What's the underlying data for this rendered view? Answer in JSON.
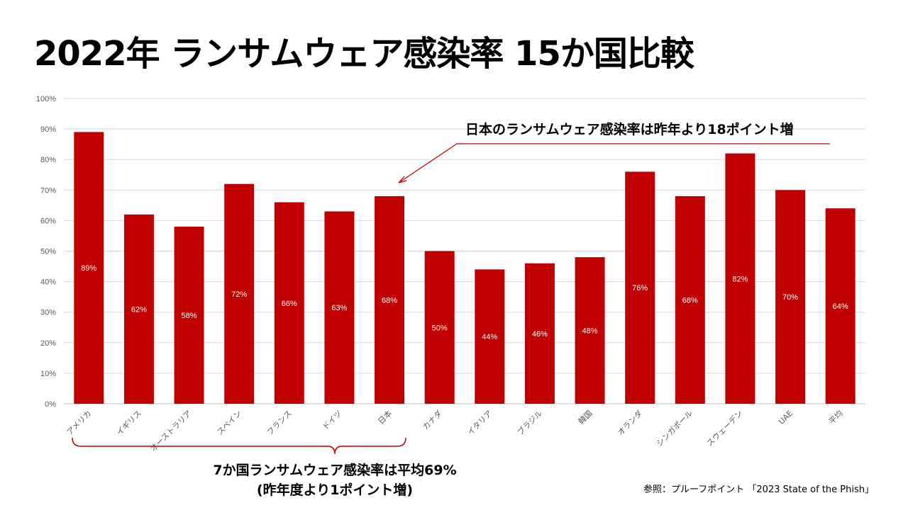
{
  "title": "2022年 ランサムウェア感染率 15か国比較",
  "callout": "日本のランサムウェア感染率は昨年より18ポイント増",
  "summary": {
    "line1": "7か国ランサムウェア感染率は平均69%",
    "line2": "(昨年度より1ポイント増)"
  },
  "source": "参照：プルーフポイント 「2023 State of the Phish」",
  "colors": {
    "bar": "#c00000",
    "grid": "#d9d9d9",
    "annotation": "#c00000"
  },
  "chart_data": {
    "type": "bar",
    "title": "2022年 ランサムウェア感染率 15か国比較",
    "categories": [
      "アメリカ",
      "イギリス",
      "オーストラリア",
      "スペイン",
      "フランス",
      "ドイツ",
      "日本",
      "カナダ",
      "イタリア",
      "ブラジル",
      "韓国",
      "オランダ",
      "シンガポール",
      "スウェーデン",
      "UAE",
      "平均"
    ],
    "values": [
      89,
      62,
      58,
      72,
      66,
      63,
      68,
      50,
      44,
      46,
      48,
      76,
      68,
      82,
      70,
      64
    ],
    "data_labels": [
      "89%",
      "62%",
      "58%",
      "72%",
      "66%",
      "63%",
      "68%",
      "50%",
      "44%",
      "46%",
      "48%",
      "76%",
      "68%",
      "82%",
      "70%",
      "64%"
    ],
    "y_ticks": [
      "0%",
      "10%",
      "20%",
      "30%",
      "40%",
      "50%",
      "60%",
      "70%",
      "80%",
      "90%",
      "100%"
    ],
    "ylim": [
      0,
      100
    ],
    "grid": true,
    "legend": "none",
    "xlabel": "",
    "ylabel": ""
  }
}
